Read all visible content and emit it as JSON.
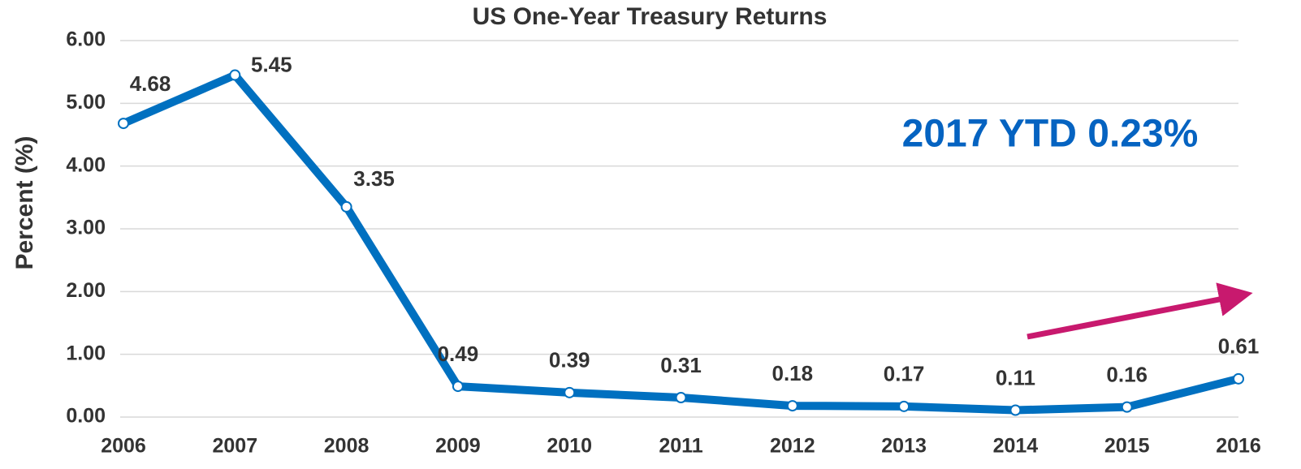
{
  "chart_data": {
    "type": "line",
    "title": "US One-Year Treasury Returns",
    "y_label": "Percent (%)",
    "annotation": "2017 YTD  0.23%",
    "categories": [
      "2006",
      "2007",
      "2008",
      "2009",
      "2010",
      "2011",
      "2012",
      "2013",
      "2014",
      "2015",
      "2016"
    ],
    "series": [
      {
        "name": "US One-Year Treasury Returns",
        "color": "#0070c0",
        "values": [
          4.68,
          5.45,
          3.35,
          0.49,
          0.39,
          0.31,
          0.18,
          0.17,
          0.11,
          0.16,
          0.61
        ]
      }
    ],
    "ylim": [
      0,
      6
    ],
    "yticks": [
      {
        "value": 0,
        "label": "0.00"
      },
      {
        "value": 1,
        "label": "1.00"
      },
      {
        "value": 2,
        "label": "2.00"
      },
      {
        "value": 3,
        "label": "3.00"
      },
      {
        "value": 4,
        "label": "4.00"
      },
      {
        "value": 5,
        "label": "5.00"
      },
      {
        "value": 6,
        "label": "6.00"
      }
    ],
    "grid": true
  }
}
